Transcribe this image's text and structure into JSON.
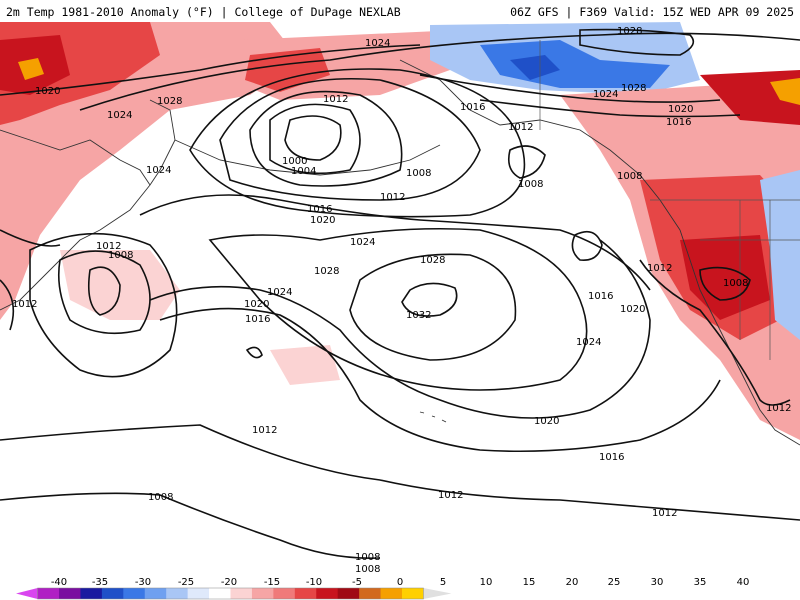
{
  "header": {
    "title": "2m Temp 1981-2010 Anomaly (°F) | College of DuPage NEXLAB",
    "valid": "06Z GFS | F369 Valid: 15Z WED APR 09 2025"
  },
  "colors": {
    "background": "#ffffff",
    "isobar": "#111111",
    "coastline": "#333333"
  },
  "isobar_labels": [
    "1024",
    "1028",
    "1020",
    "1024",
    "1028",
    "1012",
    "1016",
    "1024",
    "1028",
    "1012",
    "1020",
    "1016",
    "1000",
    "1004",
    "1008",
    "1012",
    "1008",
    "1008",
    "1024",
    "1016",
    "1020",
    "1024",
    "1012",
    "1008",
    "1028",
    "1028",
    "1012",
    "1016",
    "1020",
    "1032",
    "1024",
    "1020",
    "1016",
    "1012",
    "1012",
    "1008",
    "1012",
    "1008",
    "1020",
    "1016",
    "1012",
    "1024",
    "1012",
    "1008",
    "1008"
  ],
  "colorbar": {
    "ticks": [
      "-40",
      "-35",
      "-30",
      "-25",
      "-20",
      "-15",
      "-10",
      "-5",
      "0",
      "5",
      "10",
      "15",
      "20",
      "25",
      "30",
      "35",
      "40"
    ],
    "colors": [
      "#d946ef",
      "#b01fc4",
      "#7a0fa0",
      "#1a1aa0",
      "#1f50c8",
      "#3a78e6",
      "#6fa0f0",
      "#a9c6f5",
      "#dfe9fb",
      "#ffffff",
      "#fbd3d3",
      "#f6a5a5",
      "#f07a7a",
      "#e64646",
      "#c8141e",
      "#a00a14",
      "#d2691e",
      "#f5a000",
      "#ffd000",
      "#e0e0e0"
    ]
  }
}
